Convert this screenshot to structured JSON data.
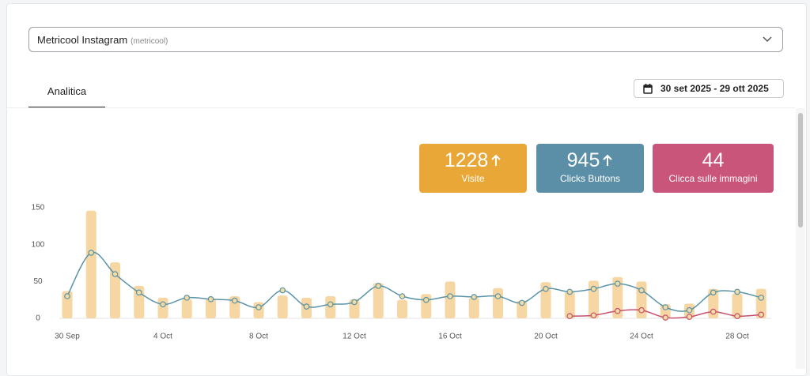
{
  "account": {
    "name": "Metricool Instagram",
    "handle": "(metricool)"
  },
  "tabs": [
    "Analitica"
  ],
  "date_range": "30 set 2025 - 29 ott 2025",
  "kpis": [
    {
      "value": 1228,
      "label": "Visite",
      "arrow": true,
      "color": "#e8a736"
    },
    {
      "value": 945,
      "label": "Clicks Buttons",
      "arrow": true,
      "color": "#5b8fa8"
    },
    {
      "value": 44,
      "label": "Clicca sulle immagini",
      "arrow": false,
      "color": "#c9557a"
    }
  ],
  "chart_data": {
    "type": "bar",
    "categories": [
      "30 Sep",
      null,
      null,
      null,
      "4 Oct",
      null,
      null,
      null,
      "8 Oct",
      null,
      null,
      null,
      "12 Oct",
      null,
      null,
      null,
      "16 Oct",
      null,
      null,
      null,
      "20 Oct",
      null,
      null,
      null,
      "24 Oct",
      null,
      null,
      null,
      "28 Oct",
      null
    ],
    "series": [
      {
        "type": "bar",
        "color": "#f6d6a2",
        "values": [
          37,
          146,
          76,
          44,
          28,
          26,
          27,
          30,
          22,
          31,
          28,
          30,
          26,
          48,
          25,
          33,
          50,
          28,
          41,
          24,
          49,
          36,
          51,
          56,
          50,
          19,
          20,
          40,
          34,
          40
        ]
      },
      {
        "type": "line",
        "color": "#5a93a8",
        "values": [
          30,
          89,
          60,
          35,
          19,
          28,
          26,
          24,
          15,
          38,
          16,
          19,
          22,
          44,
          30,
          25,
          30,
          29,
          30,
          21,
          40,
          36,
          40,
          47,
          38,
          15,
          11,
          35,
          36,
          28
        ]
      },
      {
        "type": "line",
        "color": "#c9506d",
        "values": [
          null,
          null,
          null,
          null,
          null,
          null,
          null,
          null,
          null,
          null,
          null,
          null,
          null,
          null,
          null,
          null,
          null,
          null,
          null,
          null,
          null,
          3,
          4,
          10,
          11,
          1,
          2,
          9,
          3,
          5
        ]
      }
    ],
    "ylim": [
      0,
      150
    ],
    "yticks": [
      0,
      50,
      100,
      150
    ],
    "grid": false
  }
}
